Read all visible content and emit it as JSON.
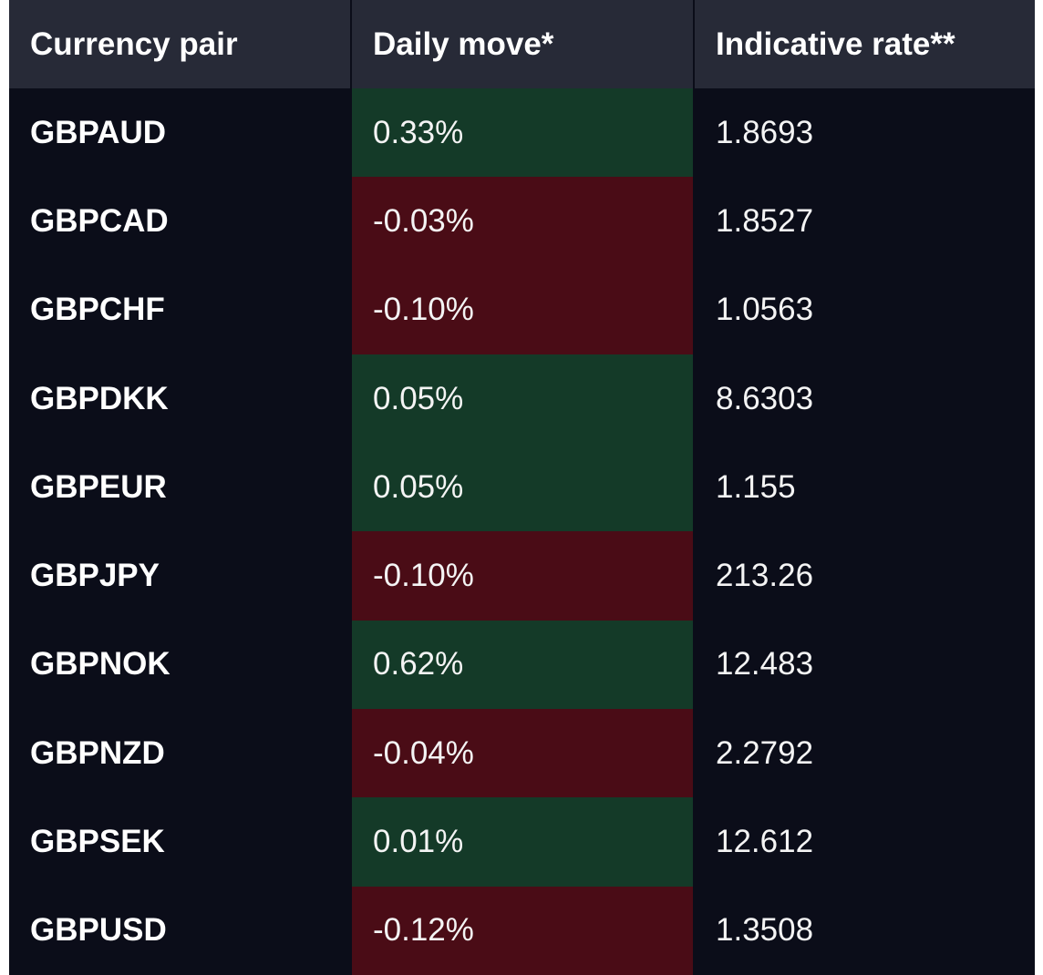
{
  "headers": {
    "pair": "Currency pair",
    "move": "Daily move*",
    "rate": "Indicative rate**"
  },
  "colors": {
    "background": "#0b0d19",
    "header_background": "#272a37",
    "positive": "#143a28",
    "negative": "#4a0c16",
    "text": "#ffffff"
  },
  "rows": [
    {
      "pair": "GBPAUD",
      "move": "0.33%",
      "rate": "1.8693",
      "direction": "pos"
    },
    {
      "pair": "GBPCAD",
      "move": "-0.03%",
      "rate": "1.8527",
      "direction": "neg"
    },
    {
      "pair": "GBPCHF",
      "move": "-0.10%",
      "rate": "1.0563",
      "direction": "neg"
    },
    {
      "pair": "GBPDKK",
      "move": "0.05%",
      "rate": "8.6303",
      "direction": "pos"
    },
    {
      "pair": "GBPEUR",
      "move": "0.05%",
      "rate": "1.155",
      "direction": "pos"
    },
    {
      "pair": "GBPJPY",
      "move": "-0.10%",
      "rate": "213.26",
      "direction": "neg"
    },
    {
      "pair": "GBPNOK",
      "move": "0.62%",
      "rate": "12.483",
      "direction": "pos"
    },
    {
      "pair": "GBPNZD",
      "move": "-0.04%",
      "rate": "2.2792",
      "direction": "neg"
    },
    {
      "pair": "GBPSEK",
      "move": "0.01%",
      "rate": "12.612",
      "direction": "pos"
    },
    {
      "pair": "GBPUSD",
      "move": "-0.12%",
      "rate": "1.3508",
      "direction": "neg"
    }
  ]
}
